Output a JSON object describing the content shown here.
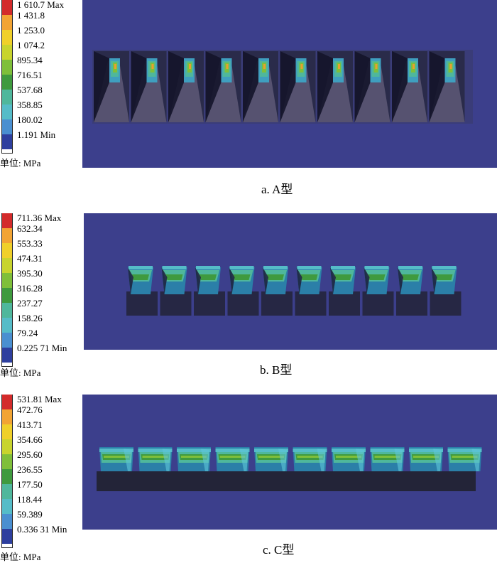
{
  "unit_label": "单位: MPa",
  "colors": [
    "#ffffff",
    "#2e3f9e",
    "#4a8fd0",
    "#55bcc8",
    "#4fb79c",
    "#3f9a3e",
    "#7fbf3a",
    "#d8d82a",
    "#f2b634",
    "#e8603a",
    "#d32b2b"
  ],
  "panels": [
    {
      "legend": [
        "1 610.7 Max",
        "1 431.8",
        "1 253.0",
        "1 074.2",
        "895.34",
        "716.51",
        "537.68",
        "358.85",
        "180.02",
        "1.191 Min"
      ],
      "caption": "a. A型",
      "block_count": 10,
      "style": "A"
    },
    {
      "legend": [
        "711.36 Max",
        "632.34",
        "553.33",
        "474.31",
        "395.30",
        "316.28",
        "237.27",
        "158.26",
        "79.24",
        "0.225 71 Min"
      ],
      "caption": "b. B型",
      "block_count": 10,
      "style": "B"
    },
    {
      "legend": [
        "531.81 Max",
        "472.76",
        "413.71",
        "354.66",
        "295.60",
        "236.55",
        "177.50",
        "118.44",
        "59.389",
        "0.336 31 Min"
      ],
      "caption": "c. C型",
      "block_count": 10,
      "style": "C"
    }
  ]
}
